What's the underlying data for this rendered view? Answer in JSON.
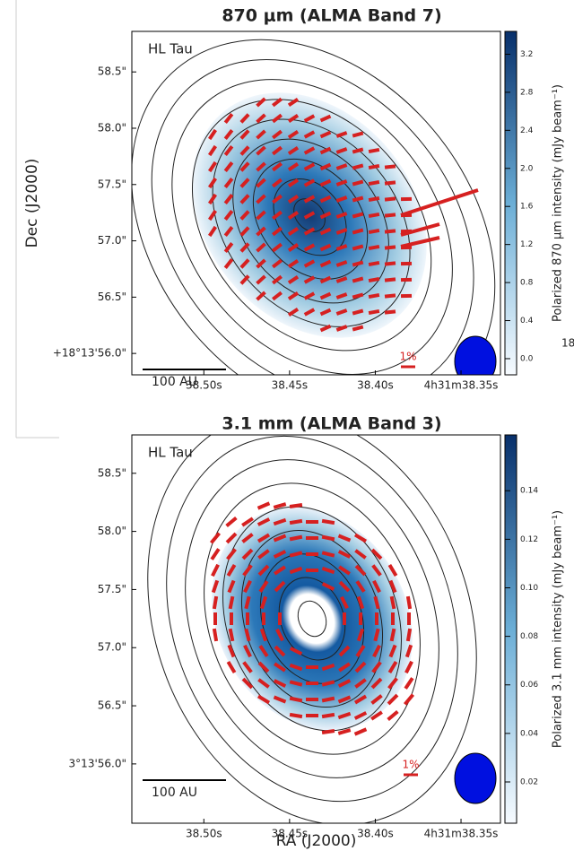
{
  "chart_data": [
    {
      "type": "polarization-map",
      "title": "870 μm (ALMA Band 7)",
      "object_label": "HL Tau",
      "y_label": "Dec (J2000)",
      "xlim": [
        38.542,
        38.327
      ],
      "xticks": [
        {
          "value": 38.5,
          "label": "38.50s"
        },
        {
          "value": 38.45,
          "label": "38.45s"
        },
        {
          "value": 38.4,
          "label": "38.40s"
        },
        {
          "value": 38.35,
          "label": "4h31m38.35s"
        }
      ],
      "ylim": [
        55.81,
        58.86
      ],
      "yticks": [
        {
          "value": 58.5,
          "label": "58.5\""
        },
        {
          "value": 58.0,
          "label": "58.0\""
        },
        {
          "value": 57.5,
          "label": "57.5\""
        },
        {
          "value": 57.0,
          "label": "57.0\""
        },
        {
          "value": 56.5,
          "label": "56.5\""
        },
        {
          "value": 56.0,
          "label": "+18°13'56.0\""
        }
      ],
      "colorbar_label": "Polarized 870 μm intensity (mJy beam⁻¹)",
      "clim": [
        -0.17,
        3.44
      ],
      "cticks": [
        {
          "value": 0.0,
          "label": "0.0"
        },
        0.4,
        0.8,
        1.2,
        1.6,
        {
          "value": 2.0,
          "label": "2.0"
        },
        2.4,
        2.8,
        3.2
      ],
      "scale_bar_label": "100 AU",
      "percent_label": "1%",
      "stray_text": "18"
    },
    {
      "type": "polarization-map",
      "title": "3.1 mm (ALMA Band 3)",
      "object_label": "HL Tau",
      "x_label": "RA (J2000)",
      "xlim": [
        38.542,
        38.327
      ],
      "xticks": [
        {
          "value": 38.5,
          "label": "38.50s"
        },
        {
          "value": 38.45,
          "label": "38.45s"
        },
        {
          "value": 38.4,
          "label": "38.40s"
        },
        {
          "value": 38.35,
          "label": "4h31m38.35s"
        }
      ],
      "ylim": [
        55.49,
        58.83
      ],
      "yticks": [
        {
          "value": 58.5,
          "label": "58.5\""
        },
        {
          "value": 58.0,
          "label": "58.0\""
        },
        {
          "value": 57.5,
          "label": "57.5\""
        },
        {
          "value": 57.0,
          "label": "57.0\""
        },
        {
          "value": 56.5,
          "label": "56.5\""
        },
        {
          "value": 56.0,
          "label": "3°13'56.0\""
        }
      ],
      "colorbar_label": "Polarized 3.1 mm intensity (mJy beam⁻¹)",
      "clim": [
        0.003,
        0.163
      ],
      "cticks": [
        0.02,
        0.04,
        0.06,
        0.08,
        {
          "value": 0.1,
          "label": "0.10"
        },
        0.12,
        0.14
      ],
      "scale_bar_label": "100 AU",
      "percent_label": "1%"
    }
  ]
}
